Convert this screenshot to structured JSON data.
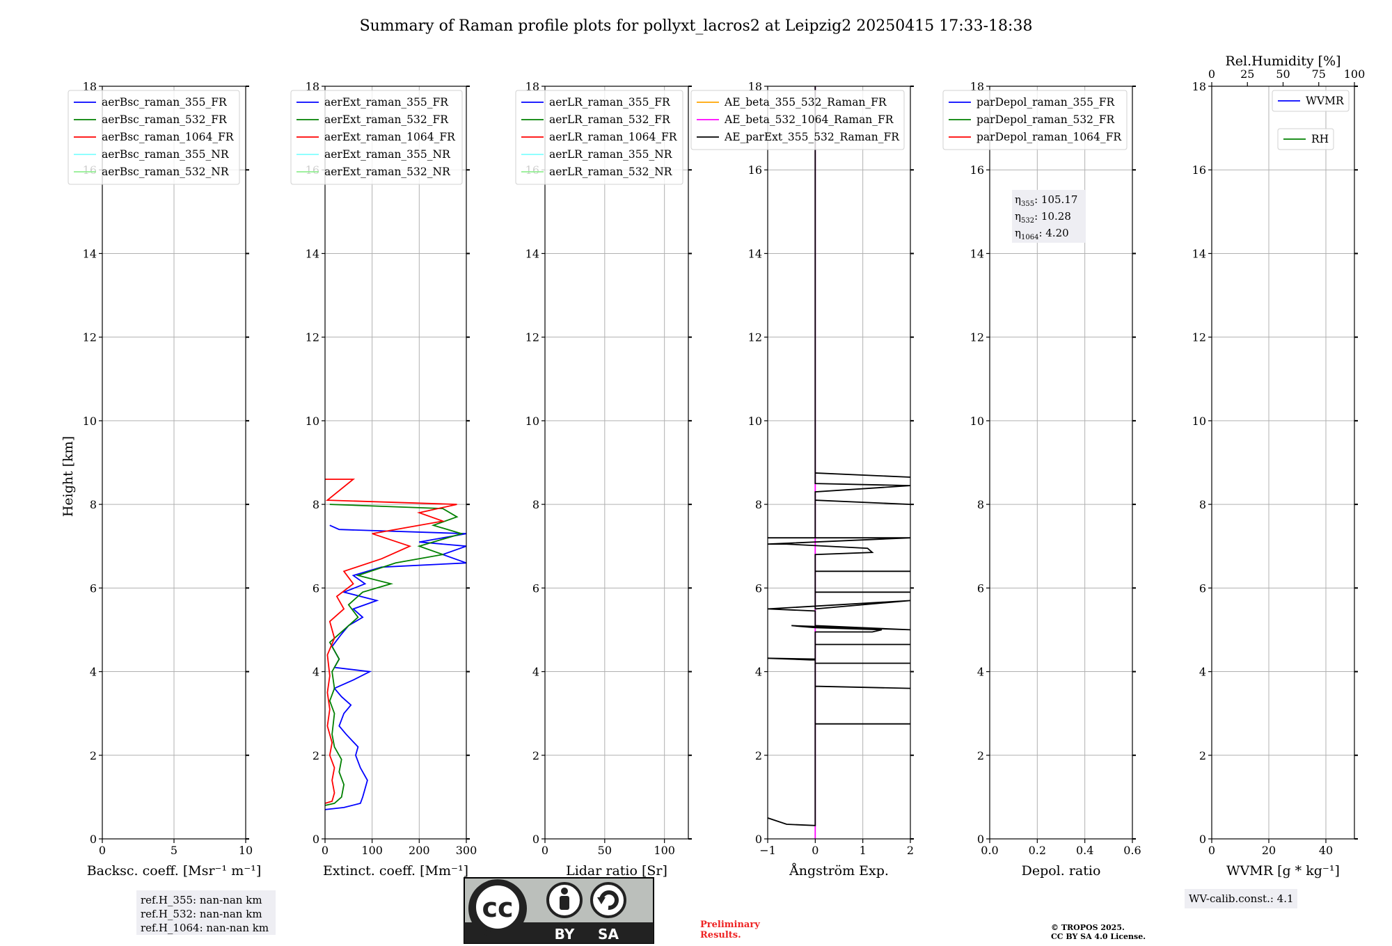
{
  "title": "Summary of Raman profile plots for pollyxt_lacros2 at Leipzig2 20250415 17:33-18:38",
  "ylabel": "Height [km]",
  "colors": {
    "blue": "#0000ff",
    "green": "#008000",
    "red": "#ff0000",
    "cyan": "#7fffff",
    "lightgreen": "#90ee90",
    "orange": "#ffa500",
    "magenta": "#ff00ff",
    "black": "#000000"
  },
  "chart_data": [
    {
      "type": "line",
      "xlabel": "Backsc. coeff. [Msr⁻¹ m⁻¹]",
      "xlim": [
        0,
        10
      ],
      "ylim": [
        0,
        18
      ],
      "xticks": [
        0,
        5,
        10
      ],
      "yticks": [
        0,
        2,
        4,
        6,
        8,
        10,
        12,
        14,
        16,
        18
      ],
      "grid": true,
      "legend_position": "top-right",
      "series": [
        {
          "name": "aerBsc_raman_355_FR",
          "color": "#0000ff",
          "points": []
        },
        {
          "name": "aerBsc_raman_532_FR",
          "color": "#008000",
          "points": []
        },
        {
          "name": "aerBsc_raman_1064_FR",
          "color": "#ff0000",
          "points": []
        },
        {
          "name": "aerBsc_raman_355_NR",
          "color": "#7fffff",
          "points": []
        },
        {
          "name": "aerBsc_raman_532_NR",
          "color": "#90ee90",
          "points": []
        }
      ]
    },
    {
      "type": "line",
      "xlabel": "Extinct. coeff. [Mm⁻¹]",
      "xlim": [
        0,
        300
      ],
      "ylim": [
        0,
        18
      ],
      "xticks": [
        0,
        100,
        200,
        300
      ],
      "yticks": [
        0,
        2,
        4,
        6,
        8,
        10,
        12,
        14,
        16,
        18
      ],
      "grid": true,
      "legend_position": "top-right",
      "series": [
        {
          "name": "aerExt_raman_355_FR",
          "color": "#0000ff",
          "points": [
            [
              0,
              0.7
            ],
            [
              40,
              0.75
            ],
            [
              75,
              0.85
            ],
            [
              80,
              1.0
            ],
            [
              85,
              1.2
            ],
            [
              90,
              1.4
            ],
            [
              75,
              1.7
            ],
            [
              65,
              2.0
            ],
            [
              70,
              2.2
            ],
            [
              45,
              2.5
            ],
            [
              30,
              2.7
            ],
            [
              40,
              3.0
            ],
            [
              55,
              3.2
            ],
            [
              35,
              3.4
            ],
            [
              20,
              3.6
            ],
            [
              60,
              3.8
            ],
            [
              95,
              4.0
            ],
            [
              20,
              4.1
            ],
            [
              30,
              4.3
            ],
            [
              15,
              4.6
            ],
            [
              35,
              4.9
            ],
            [
              50,
              5.1
            ],
            [
              80,
              5.3
            ],
            [
              60,
              5.5
            ],
            [
              110,
              5.7
            ],
            [
              40,
              5.9
            ],
            [
              85,
              6.1
            ],
            [
              60,
              6.3
            ],
            [
              120,
              6.5
            ],
            [
              300,
              6.6
            ],
            [
              250,
              6.8
            ],
            [
              300,
              7.0
            ],
            [
              200,
              7.1
            ],
            [
              300,
              7.3
            ],
            [
              30,
              7.4
            ],
            [
              10,
              7.5
            ]
          ]
        },
        {
          "name": "aerExt_raman_532_FR",
          "color": "#008000",
          "points": [
            [
              0,
              0.8
            ],
            [
              20,
              0.85
            ],
            [
              35,
              1.0
            ],
            [
              40,
              1.3
            ],
            [
              30,
              1.6
            ],
            [
              35,
              1.9
            ],
            [
              20,
              2.2
            ],
            [
              15,
              2.5
            ],
            [
              20,
              3.0
            ],
            [
              10,
              3.3
            ],
            [
              20,
              3.6
            ],
            [
              15,
              4.0
            ],
            [
              30,
              4.3
            ],
            [
              10,
              4.7
            ],
            [
              40,
              5.0
            ],
            [
              70,
              5.3
            ],
            [
              50,
              5.6
            ],
            [
              80,
              5.9
            ],
            [
              140,
              6.1
            ],
            [
              70,
              6.3
            ],
            [
              150,
              6.6
            ],
            [
              250,
              6.8
            ],
            [
              200,
              7.0
            ],
            [
              290,
              7.3
            ],
            [
              230,
              7.5
            ],
            [
              280,
              7.7
            ],
            [
              250,
              7.9
            ],
            [
              10,
              8.0
            ]
          ]
        },
        {
          "name": "aerExt_raman_1064_FR",
          "color": "#ff0000",
          "points": [
            [
              0,
              0.85
            ],
            [
              15,
              0.9
            ],
            [
              20,
              1.1
            ],
            [
              15,
              1.4
            ],
            [
              20,
              1.7
            ],
            [
              10,
              2.0
            ],
            [
              15,
              2.3
            ],
            [
              5,
              2.7
            ],
            [
              10,
              3.1
            ],
            [
              5,
              3.5
            ],
            [
              10,
              3.9
            ],
            [
              5,
              4.4
            ],
            [
              20,
              4.8
            ],
            [
              10,
              5.2
            ],
            [
              40,
              5.5
            ],
            [
              25,
              5.8
            ],
            [
              60,
              6.1
            ],
            [
              40,
              6.4
            ],
            [
              120,
              6.7
            ],
            [
              180,
              7.0
            ],
            [
              100,
              7.3
            ],
            [
              250,
              7.6
            ],
            [
              200,
              7.8
            ],
            [
              280,
              8.0
            ],
            [
              5,
              8.1
            ],
            [
              60,
              8.6
            ],
            [
              0,
              8.6
            ]
          ]
        },
        {
          "name": "aerExt_raman_355_NR",
          "color": "#7fffff",
          "points": []
        },
        {
          "name": "aerExt_raman_532_NR",
          "color": "#90ee90",
          "points": []
        }
      ]
    },
    {
      "type": "line",
      "xlabel": "Lidar ratio [Sr]",
      "xlim": [
        0,
        120
      ],
      "ylim": [
        0,
        18
      ],
      "xticks": [
        0,
        50,
        100
      ],
      "yticks": [
        0,
        2,
        4,
        6,
        8,
        10,
        12,
        14,
        16,
        18
      ],
      "grid": true,
      "legend_position": "top-right",
      "series": [
        {
          "name": "aerLR_raman_355_FR",
          "color": "#0000ff",
          "points": []
        },
        {
          "name": "aerLR_raman_532_FR",
          "color": "#008000",
          "points": []
        },
        {
          "name": "aerLR_raman_1064_FR",
          "color": "#ff0000",
          "points": []
        },
        {
          "name": "aerLR_raman_355_NR",
          "color": "#7fffff",
          "points": []
        },
        {
          "name": "aerLR_raman_532_NR",
          "color": "#90ee90",
          "points": []
        }
      ]
    },
    {
      "type": "line",
      "xlabel": "Ångström Exp.",
      "xlim": [
        -1,
        2
      ],
      "ylim": [
        0,
        18
      ],
      "xticks": [
        -1,
        0,
        1,
        2
      ],
      "yticks": [
        0,
        2,
        4,
        6,
        8,
        10,
        12,
        14,
        16,
        18
      ],
      "grid": true,
      "legend_position": "top-right",
      "series": [
        {
          "name": "AE_beta_355_532_Raman_FR",
          "color": "#ffa500",
          "points": []
        },
        {
          "name": "AE_beta_532_1064_Raman_FR",
          "color": "#ff00ff",
          "points": [
            [
              0,
              0
            ],
            [
              0,
              18
            ]
          ]
        },
        {
          "name": "AE_parExt_355_532_Raman_FR",
          "color": "#000000",
          "points": [
            [
              -1,
              0.5
            ],
            [
              -0.6,
              0.35
            ],
            [
              0,
              0.32
            ],
            [
              0,
              2.75
            ],
            [
              2,
              2.75
            ],
            [
              0,
              2.75
            ],
            [
              0,
              3.65
            ],
            [
              2,
              3.6
            ],
            [
              0,
              3.65
            ],
            [
              0,
              4.2
            ],
            [
              2,
              4.2
            ],
            [
              0,
              4.2
            ],
            [
              0,
              4.3
            ],
            [
              -1,
              4.32
            ],
            [
              -0.1,
              4.28
            ],
            [
              0,
              4.28
            ],
            [
              0,
              4.65
            ],
            [
              2,
              4.65
            ],
            [
              0,
              4.65
            ],
            [
              0,
              4.95
            ],
            [
              1.2,
              4.95
            ],
            [
              1.4,
              5.0
            ],
            [
              0,
              5.05
            ],
            [
              -0.5,
              5.1
            ],
            [
              2,
              5.0
            ],
            [
              0,
              5.1
            ],
            [
              0,
              5.45
            ],
            [
              -1,
              5.5
            ],
            [
              2,
              5.7
            ],
            [
              0,
              5.5
            ],
            [
              0,
              5.9
            ],
            [
              2,
              5.9
            ],
            [
              0,
              5.9
            ],
            [
              0,
              6.4
            ],
            [
              2,
              6.4
            ],
            [
              0,
              6.4
            ],
            [
              0,
              6.8
            ],
            [
              1.2,
              6.85
            ],
            [
              1.1,
              6.95
            ],
            [
              -0.6,
              7.05
            ],
            [
              -1,
              7.05
            ],
            [
              2,
              7.2
            ],
            [
              -1,
              7.2
            ],
            [
              0,
              7.2
            ],
            [
              0,
              8.1
            ],
            [
              2,
              8.0
            ],
            [
              0,
              8.1
            ],
            [
              0,
              8.3
            ],
            [
              2,
              8.45
            ],
            [
              0,
              8.5
            ],
            [
              0,
              8.75
            ],
            [
              2,
              8.65
            ],
            [
              0,
              8.75
            ],
            [
              0,
              18
            ]
          ]
        }
      ]
    },
    {
      "type": "line",
      "xlabel": "Depol. ratio",
      "xlim": [
        0,
        0.6
      ],
      "ylim": [
        0,
        18
      ],
      "xticks": [
        0.0,
        0.2,
        0.4,
        0.6
      ],
      "yticks": [
        0,
        2,
        4,
        6,
        8,
        10,
        12,
        14,
        16,
        18
      ],
      "grid": true,
      "legend_position": "top-right",
      "series": [
        {
          "name": "parDepol_raman_355_FR",
          "color": "#0000ff",
          "points": []
        },
        {
          "name": "parDepol_raman_532_FR",
          "color": "#008000",
          "points": []
        },
        {
          "name": "parDepol_raman_1064_FR",
          "color": "#ff0000",
          "points": []
        }
      ]
    },
    {
      "type": "line",
      "xlabel": "WVMR [g * kg⁻¹]",
      "top_xlabel": "Rel.Humidity [%]",
      "xlim": [
        0,
        50
      ],
      "ylim": [
        0,
        18
      ],
      "xticks": [
        0,
        20,
        40
      ],
      "top_xticks": [
        0,
        25,
        50,
        75,
        100
      ],
      "yticks": [
        0,
        2,
        4,
        6,
        8,
        10,
        12,
        14,
        16,
        18
      ],
      "grid": true,
      "legend_position": "top-right",
      "series": [
        {
          "name": "WVMR",
          "color": "#0000ff",
          "points": []
        },
        {
          "name": "RH",
          "color": "#008000",
          "points": []
        }
      ]
    }
  ],
  "annotations": {
    "refh": [
      "ref.H_355: nan-nan km",
      "ref.H_532: nan-nan km",
      "ref.H_1064: nan-nan km"
    ],
    "eta": [
      {
        "sub": "355",
        "value": ": 105.17"
      },
      {
        "sub": "532",
        "value": ": 10.28"
      },
      {
        "sub": "1064",
        "value": ": 4.20"
      }
    ],
    "eta_symbol": "η",
    "wv_calib": "WV-calib.const.: 4.1",
    "preliminary": [
      "Preliminary",
      "Results."
    ],
    "copyright": [
      "© TROPOS 2025.",
      "CC BY SA 4.0 License."
    ],
    "license": {
      "by": "BY",
      "sa": "SA",
      "cc": "cc"
    }
  }
}
